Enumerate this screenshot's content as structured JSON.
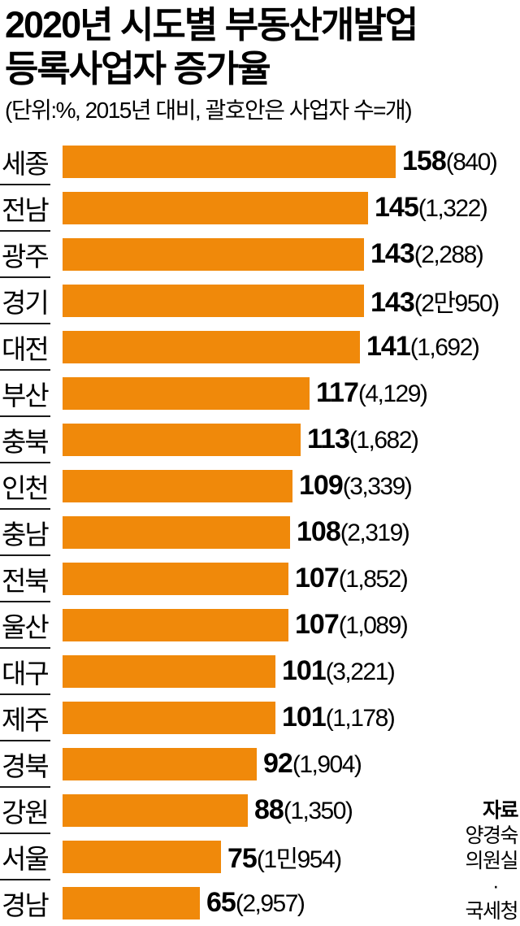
{
  "title": {
    "line1": "2020년 시도별 부동산개발업",
    "line2": "등록사업자 증가율"
  },
  "subtitle": "(단위:%, 2015년 대비, 괄호안은 사업자 수=개)",
  "colors": {
    "bar": "#F0890A",
    "text": "#000000",
    "separator": "#1A1A1A"
  },
  "chart_data": {
    "type": "bar",
    "orientation": "horizontal",
    "title": "2020년 시도별 부동산개발업 등록사업자 증가율",
    "unit_note": "(단위:%, 2015년 대비, 괄호안은 사업자 수=개)",
    "xlabel": "",
    "ylabel": "",
    "xlim": [
      0,
      158
    ],
    "grid": false,
    "legend": false,
    "value_unit": "%",
    "categories": [
      "세종",
      "전남",
      "광주",
      "경기",
      "대전",
      "부산",
      "충북",
      "인천",
      "충남",
      "전북",
      "울산",
      "대구",
      "제주",
      "경북",
      "강원",
      "서울",
      "경남"
    ],
    "values": [
      158,
      145,
      143,
      143,
      141,
      117,
      113,
      109,
      108,
      107,
      107,
      101,
      101,
      92,
      88,
      75,
      65
    ],
    "counts": [
      "840",
      "1,322",
      "2,288",
      "2만950",
      "1,692",
      "4,129",
      "1,682",
      "3,339",
      "2,319",
      "1,852",
      "1,089",
      "3,221",
      "1,178",
      "1,904",
      "1,350",
      "1민954",
      "2,957"
    ]
  },
  "source": {
    "label": "자료",
    "lines": [
      "양경숙",
      "의원실",
      "·",
      "국세청"
    ]
  }
}
